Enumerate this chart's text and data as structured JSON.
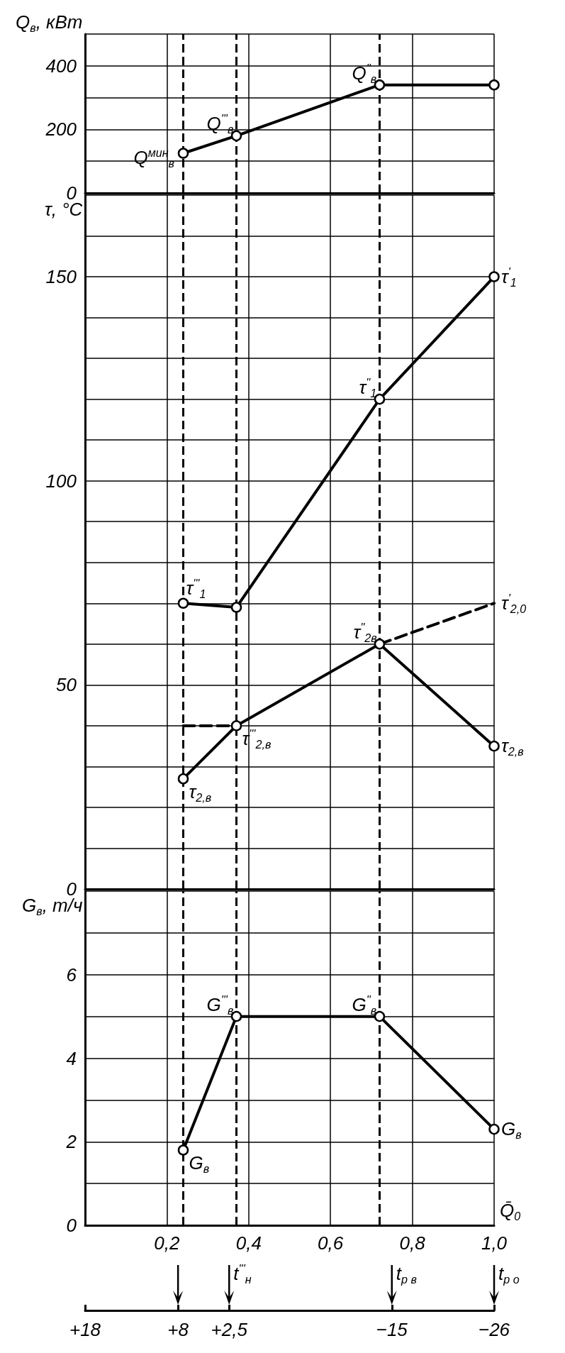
{
  "chart_data": [
    {
      "type": "line",
      "ylabel": "Q$_{в}$, кВт",
      "xlim": [
        0,
        1
      ],
      "xticks": [
        0.2,
        0.4,
        0.6,
        0.8,
        1
      ],
      "ylim": [
        0,
        500
      ],
      "yticks": [
        0,
        {
          "value": 100,
          "label": null
        },
        200,
        {
          "value": 300,
          "label": null
        },
        400,
        {
          "value": 500,
          "label": null
        }
      ],
      "tick_labels": "y",
      "grid": true,
      "marker": "circle",
      "series": [
        {
          "color": "#000000",
          "x": [
            0.24,
            0.37,
            0.72,
            1.0
          ],
          "values": [
            125,
            180,
            340,
            340
          ]
        }
      ],
      "ref_lines": [
        {
          "axis": "x",
          "value": 0.24,
          "line_style": "dashed"
        },
        {
          "axis": "x",
          "value": 0.37,
          "line_style": "dashed"
        },
        {
          "axis": "x",
          "value": 0.72,
          "line_style": "dashed"
        }
      ],
      "annotations": [
        {
          "text": "Q$^{мин}$$_{в}$",
          "x": 0.24,
          "y": 125
        },
        {
          "text": "Q$^{'''}$$_{в}$",
          "x": 0.37,
          "y": 180
        },
        {
          "text": "Q$^{''}$$_{в}$",
          "x": 0.72,
          "y": 340
        }
      ]
    },
    {
      "type": "line",
      "ylabel": "τ, °C",
      "xlim": [
        0,
        1
      ],
      "xticks": [
        0.2,
        0.4,
        0.6,
        0.8,
        1
      ],
      "ylim": [
        0,
        170
      ],
      "yticks": [
        0,
        {
          "value": 10,
          "label": null
        },
        {
          "value": 20,
          "label": null
        },
        {
          "value": 30,
          "label": null
        },
        {
          "value": 40,
          "label": null
        },
        50,
        {
          "value": 60,
          "label": null
        },
        {
          "value": 70,
          "label": null
        },
        {
          "value": 80,
          "label": null
        },
        {
          "value": 90,
          "label": null
        },
        100,
        {
          "value": 110,
          "label": null
        },
        {
          "value": 120,
          "label": null
        },
        {
          "value": 130,
          "label": null
        },
        {
          "value": 140,
          "label": null
        },
        150,
        {
          "value": 160,
          "label": null
        },
        {
          "value": 170,
          "label": null
        }
      ],
      "tick_labels": "y",
      "grid": true,
      "marker": "circle",
      "series": [
        {
          "color": "#000000",
          "x": [
            0.24,
            0.37,
            0.72,
            1.0
          ],
          "values": [
            70,
            69,
            120,
            150
          ]
        },
        {
          "color": "#000000",
          "x": [
            0.24,
            0.37,
            0.72,
            1.0
          ],
          "values": [
            27,
            40,
            60,
            35
          ]
        },
        {
          "color": "#000000",
          "x": [
            0.24,
            0.37
          ],
          "values": [
            40,
            40
          ],
          "line_style": "dashed",
          "marker": "none"
        },
        {
          "color": "#000000",
          "x": [
            0.72,
            1.0
          ],
          "values": [
            60,
            70
          ],
          "line_style": "dashed",
          "marker": "none"
        }
      ],
      "ref_lines": [
        {
          "axis": "x",
          "value": 0.24,
          "line_style": "dashed"
        },
        {
          "axis": "x",
          "value": 0.37,
          "line_style": "dashed"
        },
        {
          "axis": "x",
          "value": 0.72,
          "line_style": "dashed"
        }
      ],
      "annotations": [
        {
          "text": "τ$^{'}$$_{1}$",
          "x": 1.0,
          "y": 150
        },
        {
          "text": "τ$^{''}$$_{1}$",
          "x": 0.72,
          "y": 120
        },
        {
          "text": "τ$^{'''}$$_{1}$",
          "x": 0.24,
          "y": 70
        },
        {
          "text": "τ$^{'}$$_{2,0}$",
          "x": 1.0,
          "y": 70
        },
        {
          "text": "τ$^{''}$$_{2в}$",
          "x": 0.72,
          "y": 60
        },
        {
          "text": "τ$^{'''}$$_{2,в}$",
          "x": 0.37,
          "y": 40
        },
        {
          "text": "τ$_{2,в}$",
          "x": 0.24,
          "y": 27
        },
        {
          "text": "τ$_{2,в}$",
          "x": 1.0,
          "y": 35
        }
      ]
    },
    {
      "type": "line",
      "ylabel": "G$_{в}$, т/ч",
      "xlabel": "Q̄$_{0}$",
      "xlim": [
        0,
        1
      ],
      "xticks": [
        {
          "value": 0.2,
          "label": "0,2"
        },
        {
          "value": 0.4,
          "label": "0,4"
        },
        {
          "value": 0.6,
          "label": "0,6"
        },
        {
          "value": 0.8,
          "label": "0,8"
        },
        {
          "value": 1,
          "label": "1,0"
        }
      ],
      "x2lim": [
        18,
        -26
      ],
      "x2ticks": [
        {
          "value": 18,
          "label": "+18"
        },
        {
          "value": 8,
          "label": "+8"
        },
        {
          "value": 2.5,
          "label": "+2,5"
        },
        {
          "value": -15,
          "label": "−15"
        },
        {
          "value": -26,
          "label": "−26"
        }
      ],
      "ylim": [
        0,
        8
      ],
      "yticks": [
        0,
        {
          "value": 1,
          "label": null
        },
        2,
        {
          "value": 3,
          "label": null
        },
        4,
        {
          "value": 5,
          "label": null
        },
        6,
        {
          "value": 7,
          "label": null
        },
        {
          "value": 8,
          "label": null
        }
      ],
      "grid": true,
      "marker": "circle",
      "series": [
        {
          "color": "#000000",
          "x": [
            0.24,
            0.37,
            0.72,
            1.0
          ],
          "values": [
            1.8,
            5,
            5,
            2.3
          ]
        }
      ],
      "ref_lines": [
        {
          "axis": "x",
          "value": 0.24,
          "line_style": "dashed"
        },
        {
          "axis": "x",
          "value": 0.37,
          "line_style": "dashed"
        },
        {
          "axis": "x",
          "value": 0.72,
          "line_style": "dashed"
        }
      ],
      "annotations": [
        {
          "text": "G$^{'''}$$_{в}$",
          "x": 0.37,
          "y": 5
        },
        {
          "text": "G$^{''}$$_{в}$",
          "x": 0.72,
          "y": 5
        },
        {
          "text": "G$_{в}$",
          "x": 1.0,
          "y": 2.3
        },
        {
          "text": "G$_{в}$",
          "x": 0.24,
          "y": 1.8
        },
        "t$^{'''}$$_{н}$",
        "t$_{р в}$",
        "t$_{р о}$"
      ]
    }
  ]
}
